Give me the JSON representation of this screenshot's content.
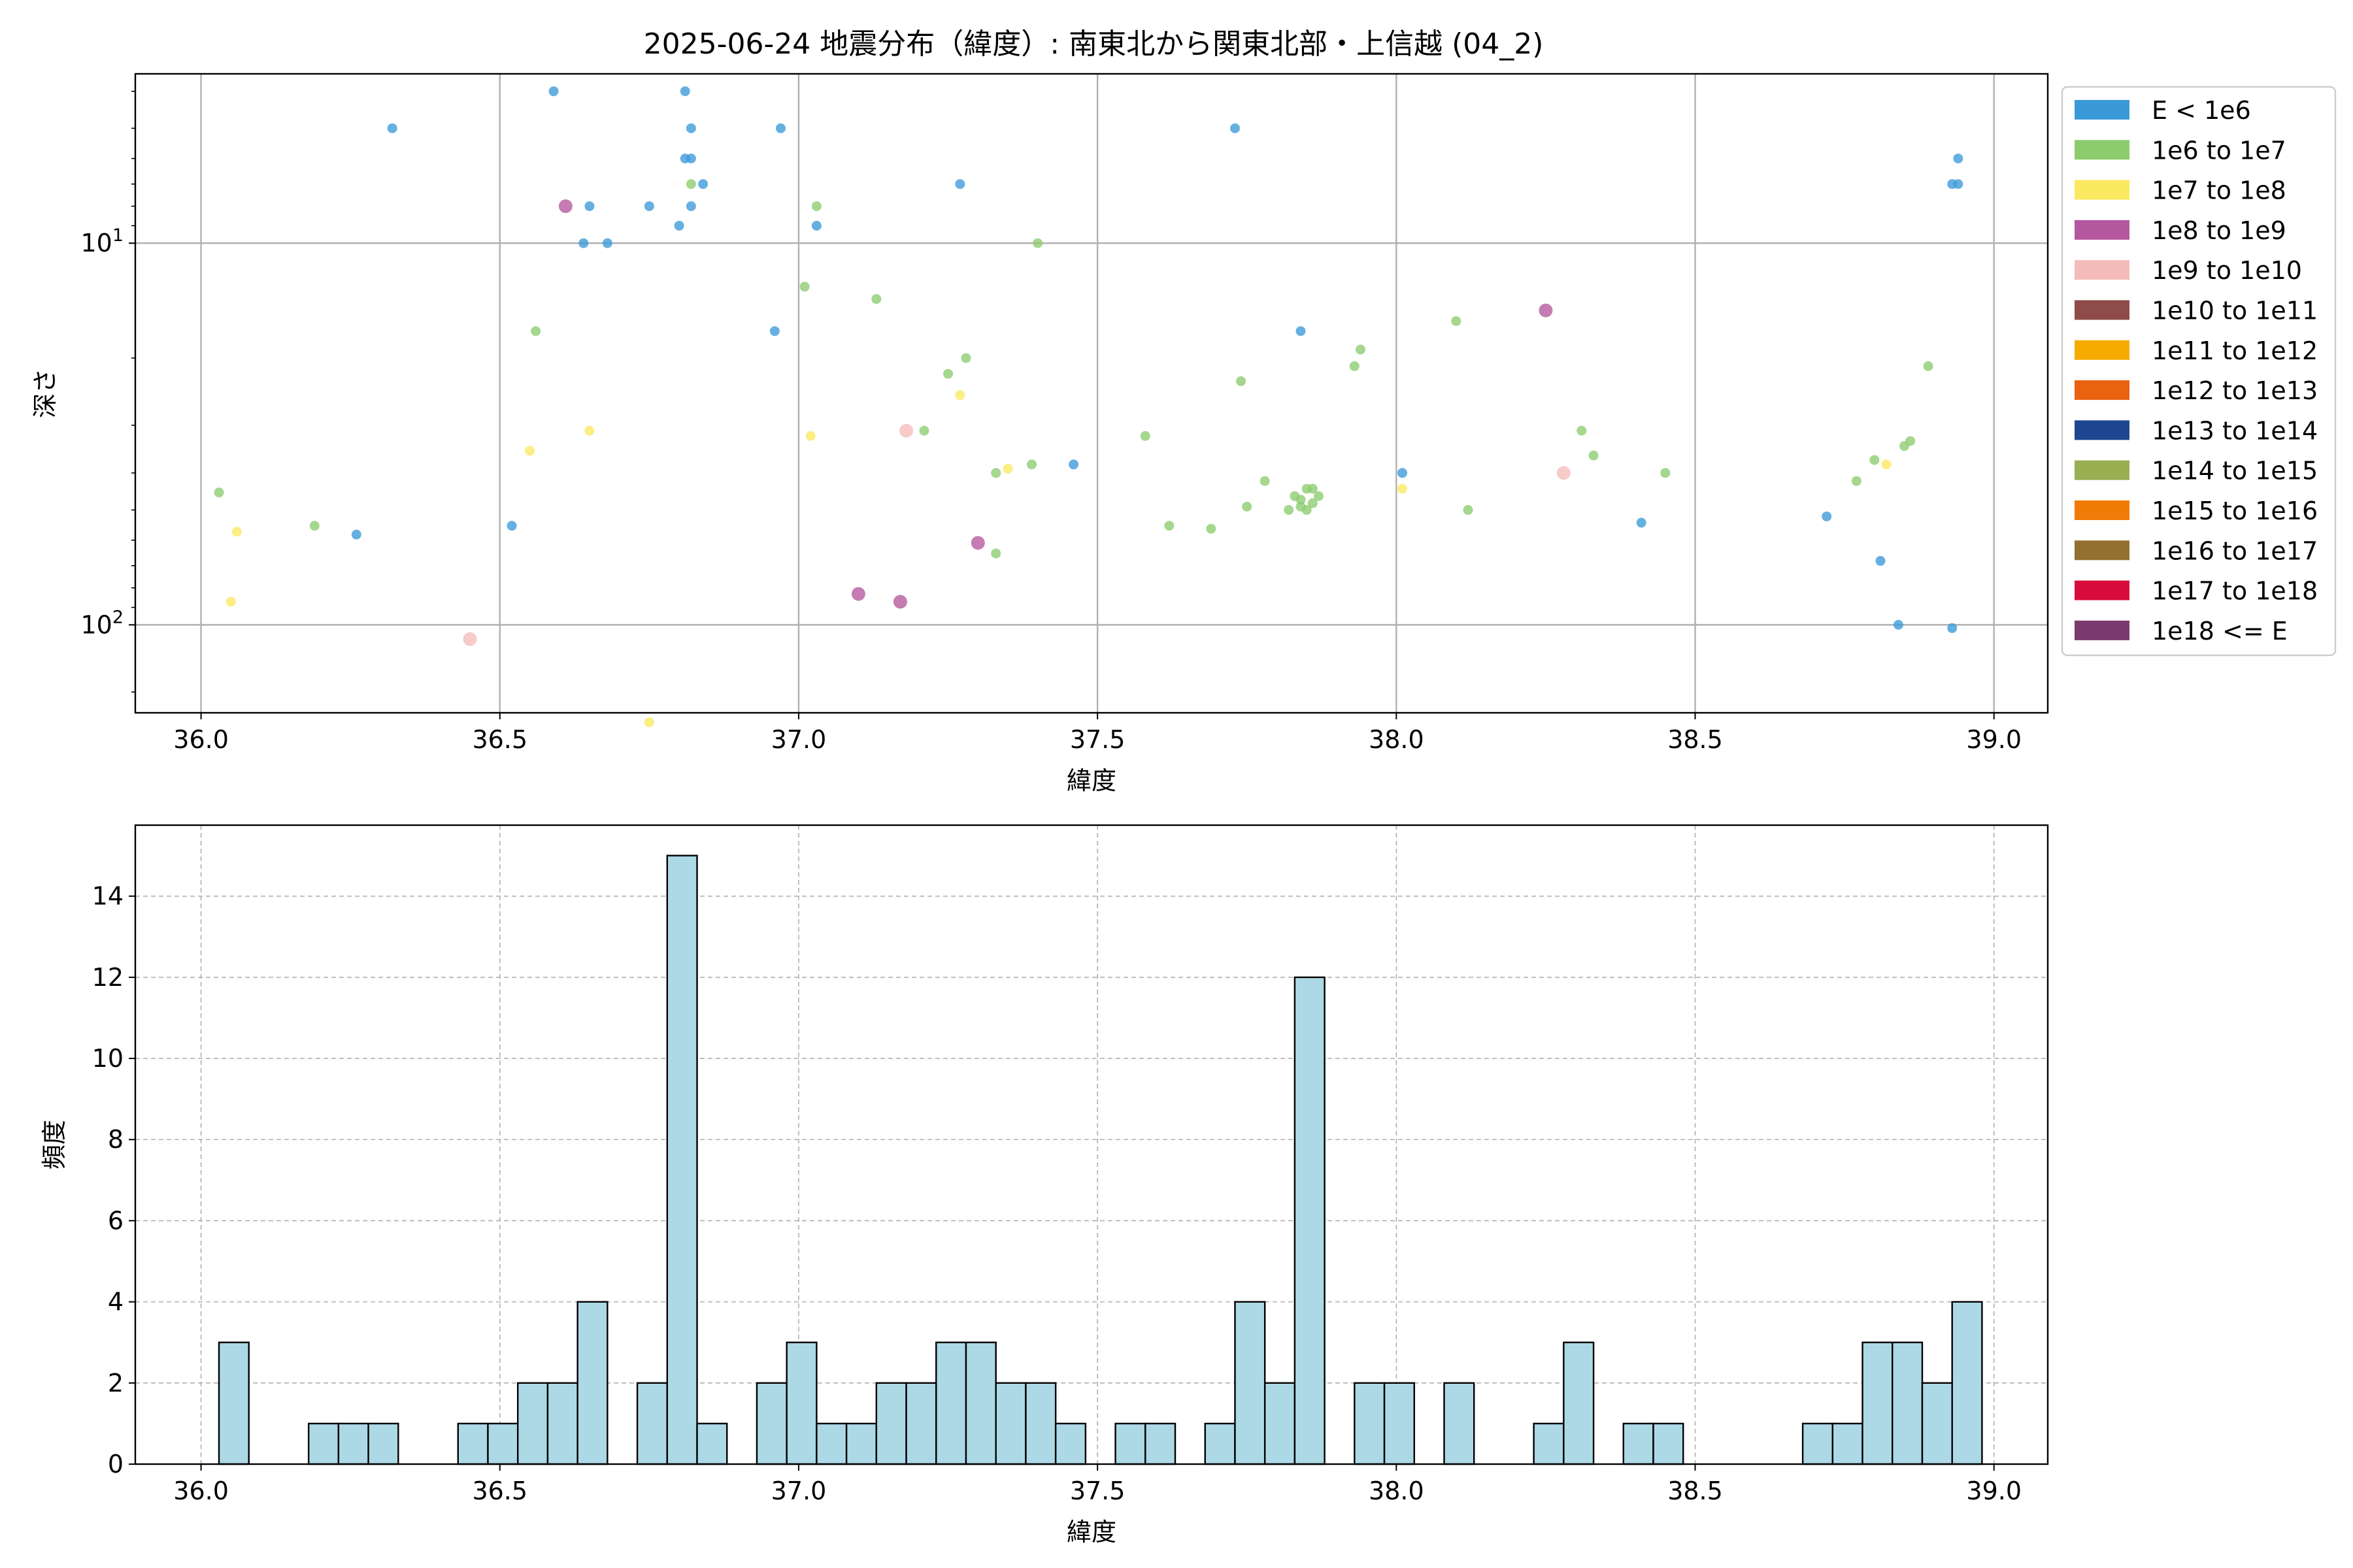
{
  "chart_data": [
    {
      "type": "scatter",
      "title": "2025-06-24 地震分布（緯度）: 南東北から関東北部・上信越 (04_2)",
      "xlabel": "緯度",
      "ylabel": "深さ",
      "xlim": [
        35.89,
        39.09
      ],
      "ylim": [
        170,
        3.6
      ],
      "y_scale": "log",
      "y_inverted": true,
      "grid": true,
      "legend_position": "outside-right",
      "x_ticks": [
        36.0,
        36.5,
        37.0,
        37.5,
        38.0,
        38.5,
        39.0
      ],
      "x_tick_labels": [
        "36.0",
        "36.5",
        "37.0",
        "37.5",
        "38.0",
        "38.5",
        "39.0"
      ],
      "y_ticks": [
        10,
        100
      ],
      "y_tick_labels": [
        {
          "base": "10",
          "exp": "1"
        },
        {
          "base": "10",
          "exp": "2"
        }
      ],
      "legend": [
        {
          "label": "E < 1e6",
          "color": "#3a9ad9"
        },
        {
          "label": "1e6 to 1e7",
          "color": "#8ccc6e"
        },
        {
          "label": "1e7 to 1e8",
          "color": "#fbe960"
        },
        {
          "label": "1e8 to 1e9",
          "color": "#b5579e"
        },
        {
          "label": "1e9 to 1e10",
          "color": "#f4bcb8"
        },
        {
          "label": "1e10 to 1e11",
          "color": "#8e4b47"
        },
        {
          "label": "1e11 to 1e12",
          "color": "#f5ab00"
        },
        {
          "label": "1e12 to 1e13",
          "color": "#e8620f"
        },
        {
          "label": "1e13 to 1e14",
          "color": "#1f4690"
        },
        {
          "label": "1e14 to 1e15",
          "color": "#9aae52"
        },
        {
          "label": "1e15 to 1e16",
          "color": "#f27b07"
        },
        {
          "label": "1e16 to 1e17",
          "color": "#927030"
        },
        {
          "label": "1e17 to 1e18",
          "color": "#d80c3a"
        },
        {
          "label": "1e18 <= E",
          "color": "#7a3a6d"
        }
      ],
      "series": [
        {
          "name": "E < 1e6",
          "points": [
            [
              36.32,
              5
            ],
            [
              36.59,
              4
            ],
            [
              36.81,
              4
            ],
            [
              36.82,
              5
            ],
            [
              36.97,
              5
            ],
            [
              36.81,
              6
            ],
            [
              36.82,
              6
            ],
            [
              36.84,
              7
            ],
            [
              36.65,
              8
            ],
            [
              36.75,
              8
            ],
            [
              36.82,
              8
            ],
            [
              36.8,
              9
            ],
            [
              37.03,
              9
            ],
            [
              36.64,
              10
            ],
            [
              36.68,
              10
            ],
            [
              37.27,
              7
            ],
            [
              37.73,
              5
            ],
            [
              38.93,
              7
            ],
            [
              38.94,
              7
            ],
            [
              38.94,
              6
            ],
            [
              36.96,
              17
            ],
            [
              37.84,
              17
            ],
            [
              36.26,
              58
            ],
            [
              36.52,
              55
            ],
            [
              37.46,
              38
            ],
            [
              38.01,
              40
            ],
            [
              38.41,
              54
            ],
            [
              38.72,
              52
            ],
            [
              38.81,
              68
            ],
            [
              38.84,
              100
            ],
            [
              38.93,
              102
            ]
          ]
        },
        {
          "name": "1e6 to 1e7",
          "points": [
            [
              36.82,
              7
            ],
            [
              37.03,
              8
            ],
            [
              37.4,
              10
            ],
            [
              37.01,
              13
            ],
            [
              37.13,
              14
            ],
            [
              36.56,
              17
            ],
            [
              37.28,
              20
            ],
            [
              37.25,
              22
            ],
            [
              37.94,
              19
            ],
            [
              37.93,
              21
            ],
            [
              37.74,
              23
            ],
            [
              38.1,
              16
            ],
            [
              38.89,
              21
            ],
            [
              37.21,
              31
            ],
            [
              37.58,
              32
            ],
            [
              37.39,
              38
            ],
            [
              37.33,
              40
            ],
            [
              37.78,
              42
            ],
            [
              37.85,
              44
            ],
            [
              37.86,
              44
            ],
            [
              37.83,
              46
            ],
            [
              37.84,
              47
            ],
            [
              37.87,
              46
            ],
            [
              37.82,
              50
            ],
            [
              37.84,
              49
            ],
            [
              37.85,
              50
            ],
            [
              37.86,
              48
            ],
            [
              37.75,
              49
            ],
            [
              38.31,
              31
            ],
            [
              38.33,
              36
            ],
            [
              38.45,
              40
            ],
            [
              38.12,
              50
            ],
            [
              38.8,
              37
            ],
            [
              38.77,
              42
            ],
            [
              38.85,
              34
            ],
            [
              38.86,
              33
            ],
            [
              37.62,
              55
            ],
            [
              37.69,
              56
            ],
            [
              37.33,
              65
            ],
            [
              36.03,
              45
            ],
            [
              36.19,
              55
            ]
          ]
        },
        {
          "name": "1e7 to 1e8",
          "points": [
            [
              36.55,
              35
            ],
            [
              36.65,
              31
            ],
            [
              37.02,
              32
            ],
            [
              37.27,
              25
            ],
            [
              37.35,
              39
            ],
            [
              38.01,
              44
            ],
            [
              38.82,
              38
            ],
            [
              36.06,
              57
            ],
            [
              36.05,
              87
            ],
            [
              36.75,
              180
            ]
          ]
        },
        {
          "name": "1e8 to 1e9",
          "points": [
            [
              36.61,
              8
            ],
            [
              38.25,
              15
            ],
            [
              37.3,
              61
            ],
            [
              37.1,
              83
            ],
            [
              37.17,
              87
            ]
          ]
        },
        {
          "name": "1e9 to 1e10",
          "points": [
            [
              37.18,
              31
            ],
            [
              38.28,
              40
            ],
            [
              36.45,
              109
            ]
          ]
        }
      ]
    },
    {
      "type": "bar",
      "title": "",
      "xlabel": "緯度",
      "ylabel": "頻度",
      "xlim": [
        35.89,
        39.09
      ],
      "ylim": [
        0,
        15.75
      ],
      "grid": true,
      "x_ticks": [
        36.0,
        36.5,
        37.0,
        37.5,
        38.0,
        38.5,
        39.0
      ],
      "x_tick_labels": [
        "36.0",
        "36.5",
        "37.0",
        "37.5",
        "38.0",
        "38.5",
        "39.0"
      ],
      "y_ticks": [
        0,
        2,
        4,
        6,
        8,
        10,
        12,
        14
      ],
      "y_tick_labels": [
        "0",
        "2",
        "4",
        "6",
        "8",
        "10",
        "12",
        "14"
      ],
      "bar_color": "#add8e6",
      "bin_start": 36.03,
      "bin_width": 0.05,
      "values": [
        3,
        0,
        0,
        1,
        1,
        1,
        0,
        0,
        1,
        1,
        2,
        2,
        4,
        0,
        2,
        15,
        1,
        0,
        2,
        3,
        1,
        1,
        2,
        2,
        3,
        3,
        2,
        2,
        1,
        0,
        1,
        1,
        0,
        1,
        4,
        2,
        12,
        0,
        2,
        2,
        0,
        2,
        0,
        0,
        1,
        3,
        0,
        1,
        1,
        0,
        0,
        0,
        0,
        1,
        1,
        3,
        3,
        2,
        4
      ]
    }
  ]
}
